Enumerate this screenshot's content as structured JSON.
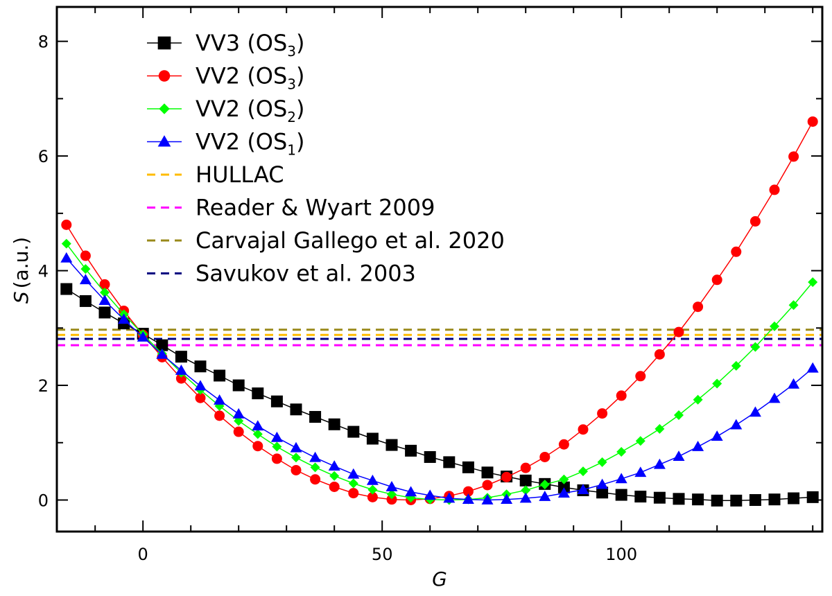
{
  "chart_data": {
    "type": "line",
    "title": "",
    "xlabel": "G",
    "ylabel": "S",
    "ylabel_unit": "(a.u.)",
    "xlim": [
      -18,
      142
    ],
    "ylim": [
      -0.55,
      8.6
    ],
    "x_ticks": [
      0,
      50,
      100
    ],
    "x_tick_labels": [
      "0",
      "50",
      "100"
    ],
    "x_minor_step": 10,
    "y_ticks": [
      0,
      2,
      4,
      6,
      8
    ],
    "y_tick_labels": [
      "0",
      "2",
      "4",
      "6",
      "8"
    ],
    "y_minor_step": 1,
    "grid": false,
    "legend_position": "top-left",
    "x": [
      -16,
      -12,
      -8,
      -4,
      0,
      4,
      8,
      12,
      16,
      20,
      24,
      28,
      32,
      36,
      40,
      44,
      48,
      52,
      56,
      60,
      64,
      68,
      72,
      76,
      80,
      84,
      88,
      92,
      96,
      100,
      104,
      108,
      112,
      116,
      120,
      124,
      128,
      132,
      136,
      140
    ],
    "series": [
      {
        "name": "VV3 (OS",
        "sub": "3",
        "close": ")",
        "color": "#000000",
        "marker": "square",
        "values": [
          3.68,
          3.47,
          3.27,
          3.08,
          2.9,
          2.7,
          2.5,
          2.33,
          2.17,
          2.0,
          1.86,
          1.72,
          1.58,
          1.45,
          1.32,
          1.19,
          1.07,
          0.96,
          0.86,
          0.75,
          0.66,
          0.57,
          0.48,
          0.41,
          0.34,
          0.28,
          0.22,
          0.17,
          0.13,
          0.09,
          0.06,
          0.04,
          0.02,
          0.01,
          -0.01,
          -0.01,
          0.0,
          0.01,
          0.03,
          0.05
        ]
      },
      {
        "name": "VV2 (OS",
        "sub": "3",
        "close": ")",
        "color": "#ff0000",
        "marker": "circle",
        "values": [
          4.8,
          4.26,
          3.76,
          3.3,
          2.88,
          2.49,
          2.12,
          1.78,
          1.47,
          1.19,
          0.94,
          0.72,
          0.52,
          0.36,
          0.23,
          0.12,
          0.05,
          0.01,
          0.0,
          0.02,
          0.07,
          0.15,
          0.26,
          0.4,
          0.56,
          0.75,
          0.97,
          1.23,
          1.51,
          1.82,
          2.16,
          2.54,
          2.93,
          3.37,
          3.84,
          4.33,
          4.86,
          5.41,
          5.99,
          6.6
        ]
      },
      {
        "name": "VV2 (OS",
        "sub": "2",
        "close": ")",
        "color": "#00ff00",
        "marker": "diamond",
        "values": [
          4.47,
          4.03,
          3.62,
          3.24,
          2.89,
          2.55,
          2.22,
          1.92,
          1.64,
          1.38,
          1.15,
          0.93,
          0.74,
          0.57,
          0.42,
          0.29,
          0.18,
          0.1,
          0.04,
          0.01,
          0.0,
          0.01,
          0.04,
          0.1,
          0.17,
          0.27,
          0.36,
          0.5,
          0.66,
          0.84,
          1.03,
          1.24,
          1.48,
          1.75,
          2.03,
          2.34,
          2.67,
          3.03,
          3.4,
          3.8
        ]
      },
      {
        "name": "VV2 (OS",
        "sub": "1",
        "close": ")",
        "color": "#0000ff",
        "marker": "triangle",
        "values": [
          4.22,
          3.84,
          3.48,
          3.15,
          2.84,
          2.54,
          2.26,
          1.99,
          1.74,
          1.5,
          1.29,
          1.09,
          0.91,
          0.74,
          0.59,
          0.45,
          0.34,
          0.23,
          0.14,
          0.08,
          0.03,
          0.01,
          0.0,
          0.01,
          0.03,
          0.06,
          0.12,
          0.18,
          0.27,
          0.37,
          0.48,
          0.62,
          0.76,
          0.93,
          1.11,
          1.31,
          1.53,
          1.77,
          2.02,
          2.3
        ]
      }
    ],
    "reference_lines": [
      {
        "name": "HULLAC",
        "color": "#ffbb00",
        "value": 2.88
      },
      {
        "name": "Reader & Wyart 2009",
        "color": "#ff00ff",
        "value": 2.7
      },
      {
        "name": "Carvajal Gallego et al. 2020",
        "color": "#99891a",
        "value": 2.97
      },
      {
        "name": "Savukov et al. 2003",
        "color": "#000080",
        "value": 2.81
      }
    ]
  }
}
